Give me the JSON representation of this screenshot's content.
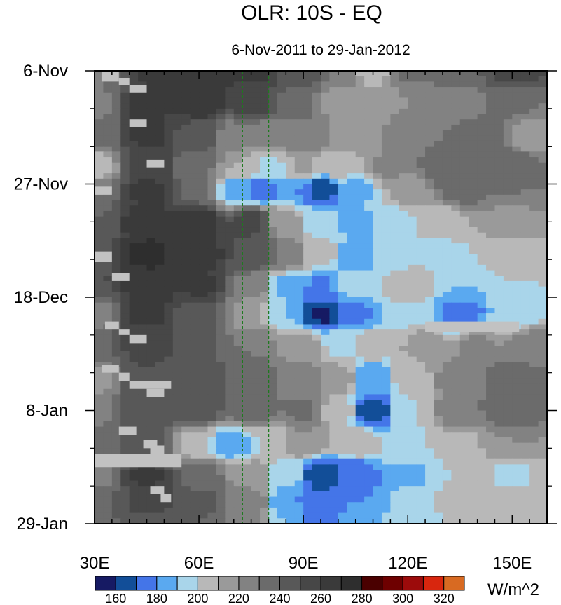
{
  "chart_data": {
    "type": "heatmap",
    "title": "OLR: 10S - EQ",
    "subtitle": "6-Nov-2011 to 29-Jan-2012",
    "xlim": [
      30,
      160
    ],
    "ylim_days_since_6nov": [
      0,
      84
    ],
    "x_ticks": [
      {
        "value": 30,
        "label": "30E"
      },
      {
        "value": 60,
        "label": "60E"
      },
      {
        "value": 90,
        "label": "90E"
      },
      {
        "value": 120,
        "label": "120E"
      },
      {
        "value": 150,
        "label": "150E"
      }
    ],
    "y_ticks": [
      {
        "value": "2011-11-06",
        "label": "6-Nov"
      },
      {
        "value": "2011-11-27",
        "label": "27-Nov"
      },
      {
        "value": "2011-12-18",
        "label": "18-Dec"
      },
      {
        "value": "2012-01-08",
        "label": "8-Jan"
      },
      {
        "value": "2012-01-29",
        "label": "29-Jan"
      }
    ],
    "reference_lines": [
      {
        "lon": 72.5,
        "color": "#1f7a1f",
        "style": "dashed"
      },
      {
        "lon": 80,
        "color": "#1f7a1f",
        "style": "dashed"
      }
    ],
    "missing_color": "#c2c2c2",
    "colorbar": {
      "unit": "W/m^2",
      "levels": [
        150,
        160,
        170,
        180,
        190,
        200,
        210,
        220,
        230,
        240,
        250,
        260,
        270,
        280,
        290,
        300,
        310,
        320,
        330
      ],
      "labels": [
        "160",
        "180",
        "200",
        "220",
        "240",
        "260",
        "280",
        "300",
        "320"
      ],
      "colors": [
        "#161a63",
        "#124e98",
        "#4475e8",
        "#5aa9f0",
        "#a9d5ea",
        "#b8b8b8",
        "#9a9a9a",
        "#828282",
        "#6b6b6b",
        "#585858",
        "#474747",
        "#3a3a3a",
        "#2e2e2e",
        "#4a0000",
        "#6e0000",
        "#9c0b0b",
        "#d8260e",
        "#d86a22"
      ]
    },
    "bands": [
      {
        "lon": 30,
        "d": 0,
        "v": 222
      },
      {
        "lon": 37,
        "d": 0,
        "v": 240
      },
      {
        "lon": 45,
        "d": 0,
        "v": 262
      },
      {
        "lon": 60,
        "d": 0,
        "v": 270
      },
      {
        "lon": 75,
        "d": 0,
        "v": 262
      },
      {
        "lon": 90,
        "d": 0,
        "v": 248
      },
      {
        "lon": 100,
        "d": 0,
        "v": 228
      },
      {
        "lon": 110,
        "d": 0,
        "v": 205
      },
      {
        "lon": 120,
        "d": 0,
        "v": 232
      },
      {
        "lon": 135,
        "d": 0,
        "v": 238
      },
      {
        "lon": 150,
        "d": 0,
        "v": 255
      },
      {
        "lon": 30,
        "d": 6,
        "v": 225
      },
      {
        "lon": 45,
        "d": 6,
        "v": 265
      },
      {
        "lon": 60,
        "d": 6,
        "v": 268
      },
      {
        "lon": 75,
        "d": 6,
        "v": 255
      },
      {
        "lon": 90,
        "d": 6,
        "v": 232
      },
      {
        "lon": 100,
        "d": 6,
        "v": 215
      },
      {
        "lon": 110,
        "d": 6,
        "v": 212
      },
      {
        "lon": 120,
        "d": 6,
        "v": 220
      },
      {
        "lon": 135,
        "d": 6,
        "v": 225
      },
      {
        "lon": 150,
        "d": 6,
        "v": 232
      },
      {
        "lon": 30,
        "d": 12,
        "v": 232
      },
      {
        "lon": 45,
        "d": 12,
        "v": 262
      },
      {
        "lon": 60,
        "d": 12,
        "v": 245
      },
      {
        "lon": 70,
        "d": 12,
        "v": 225
      },
      {
        "lon": 80,
        "d": 12,
        "v": 222
      },
      {
        "lon": 90,
        "d": 12,
        "v": 230
      },
      {
        "lon": 105,
        "d": 12,
        "v": 218
      },
      {
        "lon": 120,
        "d": 12,
        "v": 228
      },
      {
        "lon": 140,
        "d": 12,
        "v": 235
      },
      {
        "lon": 155,
        "d": 12,
        "v": 215
      },
      {
        "lon": 30,
        "d": 18,
        "v": 200
      },
      {
        "lon": 45,
        "d": 18,
        "v": 258
      },
      {
        "lon": 60,
        "d": 18,
        "v": 232
      },
      {
        "lon": 72,
        "d": 18,
        "v": 210
      },
      {
        "lon": 80,
        "d": 18,
        "v": 198
      },
      {
        "lon": 90,
        "d": 18,
        "v": 212
      },
      {
        "lon": 100,
        "d": 18,
        "v": 205
      },
      {
        "lon": 115,
        "d": 18,
        "v": 222
      },
      {
        "lon": 130,
        "d": 18,
        "v": 238
      },
      {
        "lon": 150,
        "d": 18,
        "v": 240
      },
      {
        "lon": 30,
        "d": 22,
        "v": 230
      },
      {
        "lon": 45,
        "d": 22,
        "v": 262
      },
      {
        "lon": 60,
        "d": 22,
        "v": 235
      },
      {
        "lon": 70,
        "d": 22,
        "v": 185
      },
      {
        "lon": 78,
        "d": 22,
        "v": 170
      },
      {
        "lon": 90,
        "d": 22,
        "v": 180
      },
      {
        "lon": 95,
        "d": 22,
        "v": 160
      },
      {
        "lon": 105,
        "d": 22,
        "v": 188
      },
      {
        "lon": 120,
        "d": 22,
        "v": 215
      },
      {
        "lon": 135,
        "d": 22,
        "v": 235
      },
      {
        "lon": 150,
        "d": 22,
        "v": 230
      },
      {
        "lon": 30,
        "d": 28,
        "v": 240
      },
      {
        "lon": 45,
        "d": 28,
        "v": 268
      },
      {
        "lon": 60,
        "d": 28,
        "v": 270
      },
      {
        "lon": 75,
        "d": 28,
        "v": 255
      },
      {
        "lon": 85,
        "d": 28,
        "v": 215
      },
      {
        "lon": 95,
        "d": 28,
        "v": 195
      },
      {
        "lon": 105,
        "d": 28,
        "v": 188
      },
      {
        "lon": 115,
        "d": 28,
        "v": 195
      },
      {
        "lon": 130,
        "d": 28,
        "v": 205
      },
      {
        "lon": 150,
        "d": 28,
        "v": 215
      },
      {
        "lon": 30,
        "d": 34,
        "v": 245
      },
      {
        "lon": 45,
        "d": 34,
        "v": 272
      },
      {
        "lon": 60,
        "d": 34,
        "v": 268
      },
      {
        "lon": 75,
        "d": 34,
        "v": 250
      },
      {
        "lon": 85,
        "d": 34,
        "v": 230
      },
      {
        "lon": 95,
        "d": 34,
        "v": 205
      },
      {
        "lon": 105,
        "d": 34,
        "v": 182
      },
      {
        "lon": 115,
        "d": 34,
        "v": 195
      },
      {
        "lon": 130,
        "d": 34,
        "v": 198
      },
      {
        "lon": 150,
        "d": 34,
        "v": 205
      },
      {
        "lon": 30,
        "d": 40,
        "v": 250
      },
      {
        "lon": 45,
        "d": 40,
        "v": 268
      },
      {
        "lon": 60,
        "d": 40,
        "v": 262
      },
      {
        "lon": 75,
        "d": 40,
        "v": 228
      },
      {
        "lon": 85,
        "d": 40,
        "v": 188
      },
      {
        "lon": 95,
        "d": 40,
        "v": 178
      },
      {
        "lon": 105,
        "d": 40,
        "v": 195
      },
      {
        "lon": 120,
        "d": 40,
        "v": 208
      },
      {
        "lon": 135,
        "d": 40,
        "v": 190
      },
      {
        "lon": 150,
        "d": 40,
        "v": 200
      },
      {
        "lon": 30,
        "d": 45,
        "v": 225
      },
      {
        "lon": 45,
        "d": 45,
        "v": 262
      },
      {
        "lon": 60,
        "d": 45,
        "v": 245
      },
      {
        "lon": 75,
        "d": 45,
        "v": 212
      },
      {
        "lon": 85,
        "d": 45,
        "v": 190
      },
      {
        "lon": 95,
        "d": 45,
        "v": 158
      },
      {
        "lon": 105,
        "d": 45,
        "v": 178
      },
      {
        "lon": 120,
        "d": 45,
        "v": 198
      },
      {
        "lon": 135,
        "d": 45,
        "v": 170
      },
      {
        "lon": 150,
        "d": 45,
        "v": 190
      },
      {
        "lon": 30,
        "d": 51,
        "v": 240
      },
      {
        "lon": 45,
        "d": 51,
        "v": 255
      },
      {
        "lon": 60,
        "d": 51,
        "v": 242
      },
      {
        "lon": 75,
        "d": 51,
        "v": 230
      },
      {
        "lon": 90,
        "d": 51,
        "v": 215
      },
      {
        "lon": 100,
        "d": 51,
        "v": 198
      },
      {
        "lon": 110,
        "d": 51,
        "v": 205
      },
      {
        "lon": 125,
        "d": 51,
        "v": 215
      },
      {
        "lon": 140,
        "d": 51,
        "v": 222
      },
      {
        "lon": 155,
        "d": 51,
        "v": 225
      },
      {
        "lon": 30,
        "d": 57,
        "v": 215
      },
      {
        "lon": 45,
        "d": 57,
        "v": 250
      },
      {
        "lon": 60,
        "d": 57,
        "v": 245
      },
      {
        "lon": 75,
        "d": 57,
        "v": 238
      },
      {
        "lon": 90,
        "d": 57,
        "v": 228
      },
      {
        "lon": 100,
        "d": 57,
        "v": 215
      },
      {
        "lon": 110,
        "d": 57,
        "v": 180
      },
      {
        "lon": 120,
        "d": 57,
        "v": 205
      },
      {
        "lon": 135,
        "d": 57,
        "v": 228
      },
      {
        "lon": 150,
        "d": 57,
        "v": 238
      },
      {
        "lon": 30,
        "d": 63,
        "v": 228
      },
      {
        "lon": 45,
        "d": 63,
        "v": 250
      },
      {
        "lon": 60,
        "d": 63,
        "v": 248
      },
      {
        "lon": 75,
        "d": 63,
        "v": 240
      },
      {
        "lon": 90,
        "d": 63,
        "v": 232
      },
      {
        "lon": 100,
        "d": 63,
        "v": 205
      },
      {
        "lon": 110,
        "d": 63,
        "v": 162
      },
      {
        "lon": 120,
        "d": 63,
        "v": 200
      },
      {
        "lon": 135,
        "d": 63,
        "v": 230
      },
      {
        "lon": 150,
        "d": 63,
        "v": 240
      },
      {
        "lon": 30,
        "d": 69,
        "v": 235
      },
      {
        "lon": 45,
        "d": 69,
        "v": 245
      },
      {
        "lon": 60,
        "d": 69,
        "v": 200
      },
      {
        "lon": 70,
        "d": 69,
        "v": 182
      },
      {
        "lon": 80,
        "d": 69,
        "v": 200
      },
      {
        "lon": 90,
        "d": 69,
        "v": 220
      },
      {
        "lon": 105,
        "d": 69,
        "v": 210
      },
      {
        "lon": 120,
        "d": 69,
        "v": 198
      },
      {
        "lon": 135,
        "d": 69,
        "v": 208
      },
      {
        "lon": 150,
        "d": 69,
        "v": 220
      },
      {
        "lon": 30,
        "d": 75,
        "v": 220
      },
      {
        "lon": 45,
        "d": 75,
        "v": 262
      },
      {
        "lon": 60,
        "d": 75,
        "v": 238
      },
      {
        "lon": 75,
        "d": 75,
        "v": 215
      },
      {
        "lon": 85,
        "d": 75,
        "v": 195
      },
      {
        "lon": 95,
        "d": 75,
        "v": 162
      },
      {
        "lon": 105,
        "d": 75,
        "v": 170
      },
      {
        "lon": 120,
        "d": 75,
        "v": 188
      },
      {
        "lon": 135,
        "d": 75,
        "v": 200
      },
      {
        "lon": 150,
        "d": 75,
        "v": 198
      },
      {
        "lon": 30,
        "d": 80,
        "v": 240
      },
      {
        "lon": 45,
        "d": 80,
        "v": 255
      },
      {
        "lon": 60,
        "d": 80,
        "v": 242
      },
      {
        "lon": 75,
        "d": 80,
        "v": 228
      },
      {
        "lon": 85,
        "d": 80,
        "v": 180
      },
      {
        "lon": 95,
        "d": 80,
        "v": 172
      },
      {
        "lon": 105,
        "d": 80,
        "v": 180
      },
      {
        "lon": 120,
        "d": 80,
        "v": 192
      },
      {
        "lon": 135,
        "d": 80,
        "v": 205
      },
      {
        "lon": 150,
        "d": 80,
        "v": 210
      },
      {
        "lon": 30,
        "d": 84,
        "v": 235
      },
      {
        "lon": 45,
        "d": 84,
        "v": 248
      },
      {
        "lon": 60,
        "d": 84,
        "v": 240
      },
      {
        "lon": 75,
        "d": 84,
        "v": 222
      },
      {
        "lon": 85,
        "d": 84,
        "v": 190
      },
      {
        "lon": 95,
        "d": 84,
        "v": 178
      },
      {
        "lon": 105,
        "d": 84,
        "v": 185
      },
      {
        "lon": 120,
        "d": 84,
        "v": 195
      },
      {
        "lon": 135,
        "d": 84,
        "v": 200
      },
      {
        "lon": 150,
        "d": 84,
        "v": 205
      }
    ]
  }
}
